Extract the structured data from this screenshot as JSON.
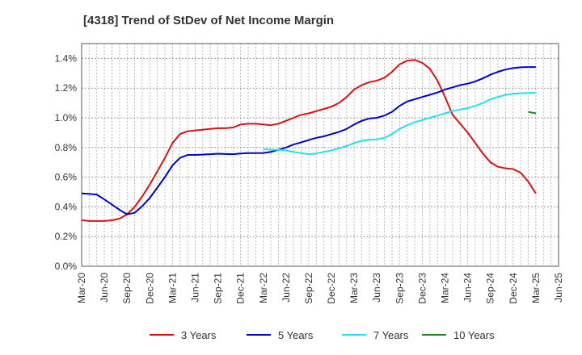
{
  "chart_data": {
    "type": "line",
    "title": "[4318]  Trend of StDev of Net Income Margin",
    "xlabel": "",
    "ylabel": "",
    "x_tick_labels": [
      "Mar-20",
      "Jun-20",
      "Sep-20",
      "Dec-20",
      "Mar-21",
      "Jun-21",
      "Sep-21",
      "Dec-21",
      "Mar-22",
      "Jun-22",
      "Sep-22",
      "Dec-22",
      "Mar-23",
      "Jun-23",
      "Sep-23",
      "Dec-23",
      "Mar-24",
      "Jun-24",
      "Sep-24",
      "Dec-24",
      "Mar-25",
      "Jun-25"
    ],
    "y_tick_labels": [
      "0.0%",
      "0.2%",
      "0.4%",
      "0.6%",
      "0.8%",
      "1.0%",
      "1.2%",
      "1.4%"
    ],
    "ylim": [
      0,
      1.5
    ],
    "y_unit": "%",
    "grid": true,
    "legend_position": "bottom",
    "series": [
      {
        "name": "3 Years",
        "color": "#dd1111",
        "x": [
          "Mar-20",
          "Apr-20",
          "May-20",
          "Jun-20",
          "Jul-20",
          "Aug-20",
          "Sep-20",
          "Oct-20",
          "Nov-20",
          "Dec-20",
          "Jan-21",
          "Feb-21",
          "Mar-21",
          "Apr-21",
          "May-21",
          "Jun-21",
          "Jul-21",
          "Aug-21",
          "Sep-21",
          "Oct-21",
          "Nov-21",
          "Dec-21",
          "Jan-22",
          "Feb-22",
          "Mar-22",
          "Apr-22",
          "May-22",
          "Jun-22",
          "Jul-22",
          "Aug-22",
          "Sep-22",
          "Oct-22",
          "Nov-22",
          "Dec-22",
          "Jan-23",
          "Feb-23",
          "Mar-23",
          "Apr-23",
          "May-23",
          "Jun-23",
          "Jul-23",
          "Aug-23",
          "Sep-23",
          "Oct-23",
          "Nov-23",
          "Dec-23",
          "Jan-24",
          "Feb-24",
          "Mar-24",
          "Apr-24",
          "May-24",
          "Jun-24",
          "Jul-24",
          "Aug-24",
          "Sep-24",
          "Oct-24",
          "Nov-24",
          "Dec-24",
          "Jan-25",
          "Feb-25",
          "Mar-25"
        ],
        "values": [
          0.31,
          0.305,
          0.305,
          0.305,
          0.31,
          0.32,
          0.35,
          0.4,
          0.47,
          0.55,
          0.64,
          0.73,
          0.83,
          0.89,
          0.91,
          0.915,
          0.92,
          0.925,
          0.93,
          0.93,
          0.935,
          0.955,
          0.96,
          0.96,
          0.955,
          0.95,
          0.96,
          0.98,
          1.0,
          1.02,
          1.03,
          1.045,
          1.06,
          1.075,
          1.1,
          1.14,
          1.19,
          1.22,
          1.24,
          1.25,
          1.27,
          1.31,
          1.36,
          1.385,
          1.39,
          1.37,
          1.33,
          1.25,
          1.14,
          1.02,
          0.96,
          0.9,
          0.83,
          0.76,
          0.7,
          0.67,
          0.66,
          0.655,
          0.63,
          0.57,
          0.49
        ]
      },
      {
        "name": "5 Years",
        "color": "#0000cc",
        "x": [
          "Mar-20",
          "Apr-20",
          "May-20",
          "Jun-20",
          "Jul-20",
          "Aug-20",
          "Sep-20",
          "Oct-20",
          "Nov-20",
          "Dec-20",
          "Jan-21",
          "Feb-21",
          "Mar-21",
          "Apr-21",
          "May-21",
          "Jun-21",
          "Jul-21",
          "Aug-21",
          "Sep-21",
          "Oct-21",
          "Nov-21",
          "Dec-21",
          "Jan-22",
          "Feb-22",
          "Mar-22",
          "Apr-22",
          "May-22",
          "Jun-22",
          "Jul-22",
          "Aug-22",
          "Sep-22",
          "Oct-22",
          "Nov-22",
          "Dec-22",
          "Jan-23",
          "Feb-23",
          "Mar-23",
          "Apr-23",
          "May-23",
          "Jun-23",
          "Jul-23",
          "Aug-23",
          "Sep-23",
          "Oct-23",
          "Nov-23",
          "Dec-23",
          "Jan-24",
          "Feb-24",
          "Mar-24",
          "Apr-24",
          "May-24",
          "Jun-24",
          "Jul-24",
          "Aug-24",
          "Sep-24",
          "Oct-24",
          "Nov-24",
          "Dec-24",
          "Jan-25",
          "Feb-25",
          "Mar-25"
        ],
        "values": [
          0.49,
          0.487,
          0.483,
          0.45,
          0.415,
          0.38,
          0.35,
          0.36,
          0.405,
          0.46,
          0.53,
          0.6,
          0.68,
          0.73,
          0.75,
          0.75,
          0.752,
          0.755,
          0.758,
          0.756,
          0.755,
          0.76,
          0.762,
          0.762,
          0.763,
          0.77,
          0.785,
          0.8,
          0.82,
          0.835,
          0.85,
          0.865,
          0.875,
          0.89,
          0.905,
          0.925,
          0.955,
          0.98,
          0.995,
          1.0,
          1.015,
          1.04,
          1.08,
          1.11,
          1.125,
          1.14,
          1.155,
          1.17,
          1.19,
          1.205,
          1.22,
          1.23,
          1.245,
          1.265,
          1.29,
          1.31,
          1.325,
          1.335,
          1.34,
          1.342,
          1.342
        ]
      },
      {
        "name": "7 Years",
        "color": "#22e0f0",
        "x": [
          "Mar-22",
          "Apr-22",
          "May-22",
          "Jun-22",
          "Jul-22",
          "Aug-22",
          "Sep-22",
          "Oct-22",
          "Nov-22",
          "Dec-22",
          "Jan-23",
          "Feb-23",
          "Mar-23",
          "Apr-23",
          "May-23",
          "Jun-23",
          "Jul-23",
          "Aug-23",
          "Sep-23",
          "Oct-23",
          "Nov-23",
          "Dec-23",
          "Jan-24",
          "Feb-24",
          "Mar-24",
          "Apr-24",
          "May-24",
          "Jun-24",
          "Jul-24",
          "Aug-24",
          "Sep-24",
          "Oct-24",
          "Nov-24",
          "Dec-24",
          "Jan-25",
          "Feb-25",
          "Mar-25"
        ],
        "values": [
          0.79,
          0.785,
          0.785,
          0.78,
          0.77,
          0.762,
          0.755,
          0.76,
          0.77,
          0.78,
          0.795,
          0.81,
          0.83,
          0.845,
          0.852,
          0.855,
          0.865,
          0.89,
          0.925,
          0.95,
          0.97,
          0.985,
          1.0,
          1.015,
          1.03,
          1.045,
          1.055,
          1.065,
          1.08,
          1.1,
          1.125,
          1.14,
          1.155,
          1.162,
          1.165,
          1.167,
          1.168
        ]
      },
      {
        "name": "10 Years",
        "color": "#228822",
        "x": [
          "Feb-25",
          "Mar-25"
        ],
        "values": [
          1.04,
          1.03
        ]
      }
    ]
  }
}
